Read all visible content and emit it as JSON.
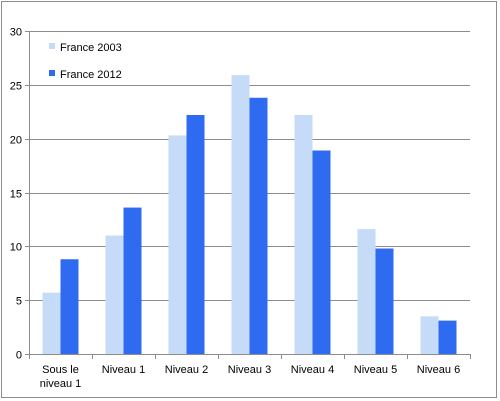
{
  "chart_data": {
    "type": "bar",
    "categories": [
      [
        "Sous le",
        "niveau 1"
      ],
      [
        "Niveau 1"
      ],
      [
        "Niveau 2"
      ],
      [
        "Niveau 3"
      ],
      [
        "Niveau 4"
      ],
      [
        "Niveau 5"
      ],
      [
        "Niveau 6"
      ]
    ],
    "series": [
      {
        "name": "France 2003",
        "values": [
          5.7,
          11.0,
          20.3,
          25.9,
          22.2,
          11.6,
          3.5
        ],
        "color": "#c6dbf7"
      },
      {
        "name": "France 2012",
        "values": [
          8.8,
          13.6,
          22.2,
          23.8,
          18.9,
          9.8,
          3.1
        ],
        "color": "#2f6bf0"
      }
    ],
    "ylim": [
      0,
      30
    ],
    "yticks": [
      0,
      5,
      10,
      15,
      20,
      25,
      30
    ],
    "grid": true,
    "legend_position": "top-left",
    "title": "",
    "xlabel": "",
    "ylabel": ""
  }
}
